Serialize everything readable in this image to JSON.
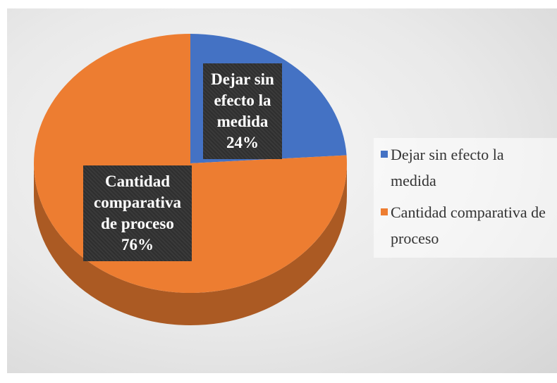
{
  "chart_data": {
    "type": "pie",
    "categories": [
      "Dejar sin efecto la medida",
      "Cantidad comparativa de proceso"
    ],
    "values": [
      24,
      76
    ],
    "value_labels": [
      "24%",
      "76%"
    ],
    "colors": [
      "#4472c4",
      "#ed7d31"
    ],
    "legend": "right"
  }
}
